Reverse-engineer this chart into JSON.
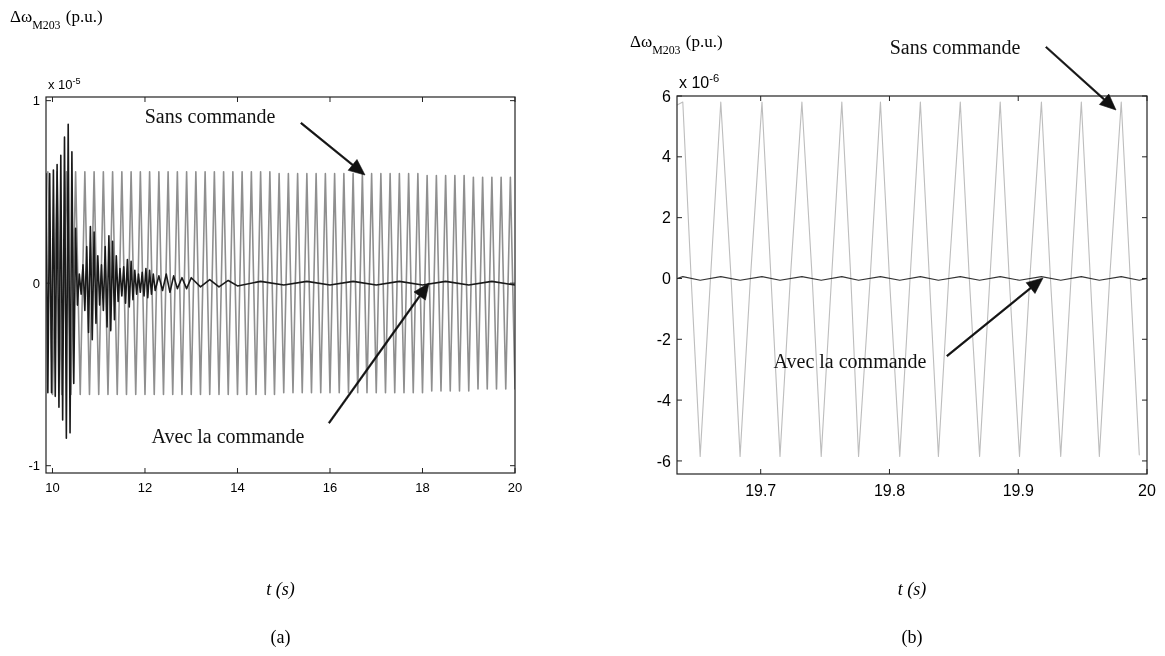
{
  "chart_data": [
    {
      "type": "line",
      "xlabel": "t (s)",
      "ylabel": "Δω$_{M203}$ (p.u.)",
      "xlim": [
        9.86,
        20
      ],
      "xticks": [
        10,
        12,
        14,
        16,
        18,
        20
      ],
      "ylim": [
        -1.04,
        1.02
      ],
      "yticks": [
        -1,
        0,
        1
      ],
      "annotations": [
        "Sans commande",
        "Avec la commande",
        "x 10$^{-5}$",
        "(a)"
      ],
      "series": [
        {
          "color": "#8f8f8f",
          "x": [
            9.9,
            10.0,
            10.1,
            10.2,
            10.3,
            10.4,
            10.5,
            10.6,
            10.7,
            10.8,
            10.9,
            11.0,
            11.1,
            11.2,
            11.3,
            11.4,
            11.5,
            11.6,
            11.7,
            11.8,
            11.9,
            12.0,
            12.1,
            12.2,
            12.3,
            12.4,
            12.5,
            12.6,
            12.7,
            12.8,
            12.9,
            13.0,
            13.1,
            13.2,
            13.3,
            13.4,
            13.5,
            13.6,
            13.7,
            13.8,
            13.9,
            14.0,
            14.1,
            14.2,
            14.3,
            14.4,
            14.5,
            14.6,
            14.7,
            14.8,
            14.9,
            15.0,
            15.1,
            15.2,
            15.3,
            15.4,
            15.5,
            15.6,
            15.7,
            15.8,
            15.9,
            16.0,
            16.1,
            16.2,
            16.3,
            16.4,
            16.5,
            16.6,
            16.7,
            16.8,
            16.9,
            17.0,
            17.1,
            17.2,
            17.3,
            17.4,
            17.5,
            17.6,
            17.7,
            17.8,
            17.9,
            18.0,
            18.1,
            18.2,
            18.3,
            18.4,
            18.5,
            18.6,
            18.7,
            18.8,
            18.9,
            19.0,
            19.1,
            19.2,
            19.3,
            19.4,
            19.5,
            19.6,
            19.7,
            19.8,
            19.9,
            20.0
          ],
          "values": [
            0.61,
            -0.61,
            0.61,
            -0.61,
            0.61,
            -0.61,
            0.61,
            -0.61,
            0.61,
            -0.61,
            0.61,
            -0.61,
            0.61,
            -0.61,
            0.61,
            -0.61,
            0.61,
            -0.61,
            0.61,
            -0.61,
            0.61,
            -0.61,
            0.61,
            -0.61,
            0.61,
            -0.61,
            0.61,
            -0.61,
            0.61,
            -0.61,
            0.61,
            -0.61,
            0.61,
            -0.61,
            0.61,
            -0.61,
            0.61,
            -0.61,
            0.61,
            -0.61,
            0.61,
            -0.61,
            0.61,
            -0.61,
            0.61,
            -0.61,
            0.61,
            -0.61,
            0.61,
            -0.61,
            0.6,
            -0.6,
            0.6,
            -0.6,
            0.6,
            -0.6,
            0.6,
            -0.6,
            0.6,
            -0.6,
            0.6,
            -0.6,
            0.6,
            -0.6,
            0.6,
            -0.6,
            0.6,
            -0.6,
            0.6,
            -0.6,
            0.6,
            -0.6,
            0.6,
            -0.6,
            0.6,
            -0.6,
            0.6,
            -0.6,
            0.6,
            -0.6,
            0.6,
            -0.6,
            0.59,
            -0.59,
            0.59,
            -0.59,
            0.59,
            -0.59,
            0.59,
            -0.59,
            0.59,
            -0.59,
            0.58,
            -0.58,
            0.58,
            -0.58,
            0.58,
            -0.58,
            0.58,
            -0.58,
            0.58,
            -0.58
          ]
        },
        {
          "color": "#1a1a1a",
          "x": [
            9.86,
            9.9,
            9.94,
            9.98,
            10.02,
            10.06,
            10.1,
            10.14,
            10.18,
            10.22,
            10.26,
            10.3,
            10.34,
            10.38,
            10.42,
            10.46,
            10.5,
            10.54,
            10.58,
            10.62,
            10.66,
            10.7,
            10.74,
            10.78,
            10.82,
            10.86,
            10.9,
            10.94,
            10.98,
            11.02,
            11.06,
            11.1,
            11.14,
            11.18,
            11.22,
            11.26,
            11.3,
            11.34,
            11.38,
            11.42,
            11.46,
            11.5,
            11.54,
            11.58,
            11.62,
            11.66,
            11.7,
            11.74,
            11.78,
            11.82,
            11.86,
            11.9,
            11.94,
            11.98,
            12.02,
            12.06,
            12.1,
            12.14,
            12.18,
            12.22,
            12.3,
            12.38,
            12.46,
            12.54,
            12.62,
            12.7,
            12.8,
            12.9,
            13.0,
            13.2,
            13.4,
            13.6,
            13.8,
            14.0,
            14.5,
            15,
            15.5,
            16,
            16.5,
            17,
            17.5,
            18,
            18.5,
            19,
            19.5,
            20
          ],
          "values": [
            0.6,
            -0.6,
            0.6,
            -0.6,
            0.62,
            -0.62,
            0.65,
            -0.68,
            0.7,
            -0.75,
            0.8,
            -0.85,
            0.87,
            -0.82,
            0.72,
            -0.55,
            0.3,
            -0.12,
            0.05,
            -0.06,
            0.1,
            -0.15,
            0.2,
            -0.27,
            0.31,
            -0.31,
            0.28,
            -0.22,
            0.15,
            -0.12,
            0.1,
            -0.15,
            0.2,
            -0.24,
            0.26,
            -0.26,
            0.23,
            -0.2,
            0.15,
            -0.1,
            0.08,
            -0.07,
            0.09,
            -0.11,
            0.13,
            -0.13,
            0.12,
            -0.09,
            0.07,
            -0.06,
            0.05,
            -0.05,
            0.06,
            -0.07,
            0.08,
            -0.08,
            0.07,
            -0.06,
            0.05,
            -0.04,
            0.04,
            -0.04,
            0.05,
            -0.05,
            0.04,
            -0.03,
            0.03,
            -0.03,
            0.03,
            -0.02,
            0.02,
            -0.02,
            0.015,
            -0.015,
            0.01,
            -0.01,
            0.01,
            -0.01,
            0.01,
            -0.01,
            0.01,
            -0.01,
            0.01,
            -0.01,
            0.01,
            -0.01
          ]
        }
      ]
    },
    {
      "type": "line",
      "xlabel": "t (s)",
      "ylabel": "Δω$_{M203}$ (p.u.)",
      "xlim": [
        19.635,
        20
      ],
      "xticks": [
        19.7,
        19.8,
        19.9,
        20
      ],
      "ylim": [
        -6.43,
        6
      ],
      "yticks": [
        -6,
        -4,
        -2,
        0,
        2,
        4,
        6
      ],
      "annotations": [
        "Sans commande",
        "Avec la commande",
        "x 10$^{-6}$",
        "(b)"
      ],
      "series": [
        {
          "color": "#bdbdbd",
          "x": [
            19.635,
            19.6395,
            19.646,
            19.653,
            19.661,
            19.669,
            19.677,
            19.684,
            19.692,
            19.701,
            19.708,
            19.715,
            19.723,
            19.732,
            19.74,
            19.747,
            19.755,
            19.763,
            19.77,
            19.776,
            19.785,
            19.793,
            19.8,
            19.808,
            19.816,
            19.824,
            19.831,
            19.838,
            19.846,
            19.855,
            19.862,
            19.87,
            19.878,
            19.886,
            19.893,
            19.901,
            19.909,
            19.918,
            19.925,
            19.933,
            19.941,
            19.949,
            19.956,
            19.963,
            19.971,
            19.98,
            19.987,
            19.994
          ],
          "values": [
            5.7,
            5.8,
            0,
            -5.85,
            0,
            5.8,
            0,
            -5.85,
            0,
            5.8,
            0,
            -5.85,
            0,
            5.8,
            0,
            -5.85,
            0,
            5.8,
            0,
            -5.85,
            0,
            5.8,
            0,
            -5.85,
            0,
            5.8,
            0,
            -5.85,
            0,
            5.8,
            0,
            -5.85,
            0,
            5.8,
            0,
            -5.85,
            0,
            5.8,
            0,
            -5.85,
            0,
            5.8,
            0,
            -5.85,
            0,
            5.8,
            0,
            -5.8
          ]
        },
        {
          "color": "#333333",
          "x": [
            19.635,
            19.6395,
            19.653,
            19.669,
            19.684,
            19.701,
            19.715,
            19.732,
            19.747,
            19.763,
            19.776,
            19.793,
            19.808,
            19.824,
            19.838,
            19.855,
            19.87,
            19.886,
            19.901,
            19.918,
            19.933,
            19.949,
            19.963,
            19.98,
            19.994,
            20.0
          ],
          "values": [
            0,
            0.06,
            -0.06,
            0.06,
            -0.06,
            0.06,
            -0.06,
            0.06,
            -0.06,
            0.06,
            -0.06,
            0.06,
            -0.06,
            0.06,
            -0.06,
            0.06,
            -0.06,
            0.06,
            -0.06,
            0.06,
            -0.06,
            0.06,
            -0.06,
            0.06,
            -0.06,
            0
          ]
        }
      ]
    }
  ]
}
